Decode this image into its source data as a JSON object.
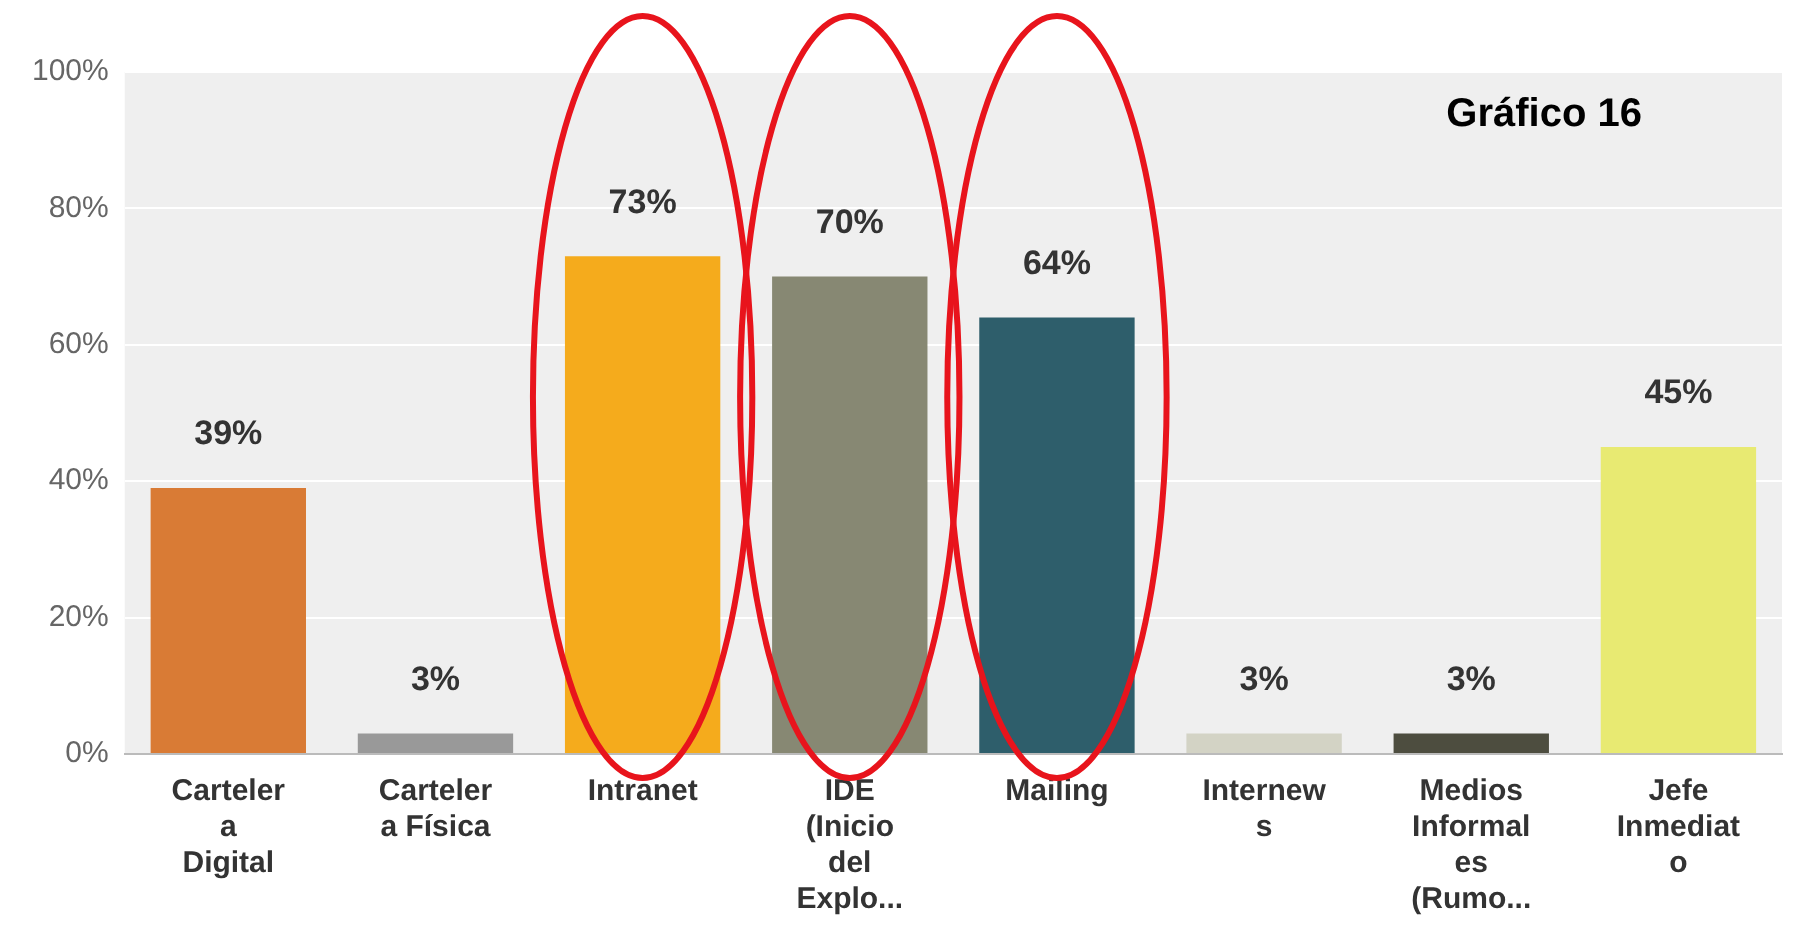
{
  "chart_data": {
    "type": "bar",
    "title": "Gráfico 16",
    "categories": [
      "Carteler\na\nDigital",
      "Carteler\na Física",
      "Intranet",
      "IDE\n(Inicio\ndel\nExplo...",
      "Mailing",
      "Internew\ns",
      "Medios\nInformal\nes\n(Rumo...",
      "Jefe\nInmediat\no"
    ],
    "values": [
      39,
      3,
      73,
      70,
      64,
      3,
      3,
      45
    ],
    "colors": [
      "#d97b35",
      "#999999",
      "#f5ab1c",
      "#878873",
      "#2e5e6b",
      "#d3d3c5",
      "#4d4d3f",
      "#e8ea72"
    ],
    "value_labels": [
      "39%",
      "3%",
      "73%",
      "70%",
      "64%",
      "3%",
      "3%",
      "45%"
    ],
    "ylim": [
      0,
      100
    ],
    "yticks": [
      {
        "value": 0,
        "label": "0%"
      },
      {
        "value": 20,
        "label": "20%"
      },
      {
        "value": 40,
        "label": "40%"
      },
      {
        "value": 60,
        "label": "60%"
      },
      {
        "value": 80,
        "label": "80%"
      },
      {
        "value": 100,
        "label": "100%"
      }
    ],
    "grid": "y"
  }
}
